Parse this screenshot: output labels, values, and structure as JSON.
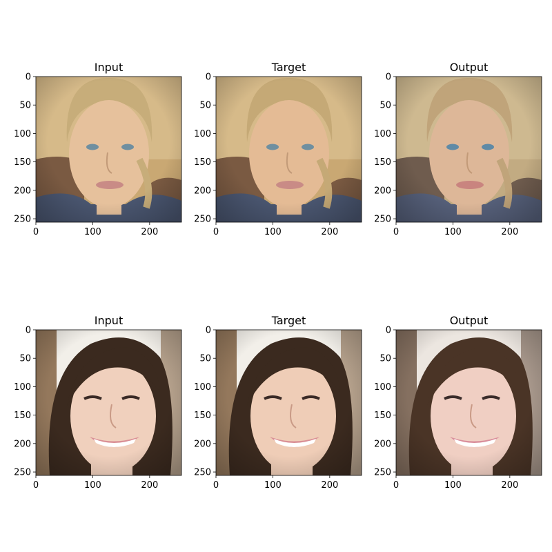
{
  "figure": {
    "rows": [
      {
        "panels": [
          {
            "title": "Input",
            "palette": {
              "bg": "#c9a873",
              "bg2": "#e0c99a",
              "skin": "#e6c19c",
              "hair": "#c7ad7a",
              "shirt": "#4a5670",
              "chair": "#7a5a42",
              "eyes": "#6f8fa0",
              "lips": "#c98b86"
            }
          },
          {
            "title": "Target",
            "palette": {
              "bg": "#c9a873",
              "bg2": "#e0c99a",
              "skin": "#e4bb95",
              "hair": "#c5a976",
              "shirt": "#4a5670",
              "chair": "#7a5a42",
              "eyes": "#6f8fa0",
              "lips": "#c98b86"
            }
          },
          {
            "title": "Output",
            "palette": {
              "bg": "#c2ab82",
              "bg2": "#d9c49d",
              "skin": "#ddb798",
              "hair": "#c0a47a",
              "shirt": "#56607a",
              "chair": "#6f5c4e",
              "eyes": "#5f8aa6",
              "lips": "#c9847f"
            }
          }
        ]
      },
      {
        "panels": [
          {
            "title": "Input",
            "palette": {
              "bg": "#8a6a4c",
              "bg2": "#f2efe9",
              "skin": "#f0d0bd",
              "hair": "#3b2a1f",
              "shirt": "#5a4334",
              "chair": "#6b4d36",
              "eyes": "#3a2a26",
              "lips": "#d98f95"
            }
          },
          {
            "title": "Target",
            "palette": {
              "bg": "#8a6a4c",
              "bg2": "#f2efe9",
              "skin": "#efcdb7",
              "hair": "#3b2a1f",
              "shirt": "#5a4334",
              "chair": "#6b4d36",
              "eyes": "#3a2a26",
              "lips": "#d98f95"
            }
          },
          {
            "title": "Output",
            "palette": {
              "bg": "#7a6352",
              "bg2": "#ece6e0",
              "skin": "#f0cfc3",
              "hair": "#4a3426",
              "shirt": "#5a463a",
              "chair": "#6a5040",
              "eyes": "#3a2c2a",
              "lips": "#d98e9b"
            }
          }
        ]
      }
    ],
    "axes": {
      "x_ticks": [
        0,
        100,
        200
      ],
      "y_ticks": [
        0,
        50,
        100,
        150,
        200,
        250
      ],
      "x_range": [
        0,
        256
      ],
      "y_range": [
        0,
        256
      ]
    }
  }
}
